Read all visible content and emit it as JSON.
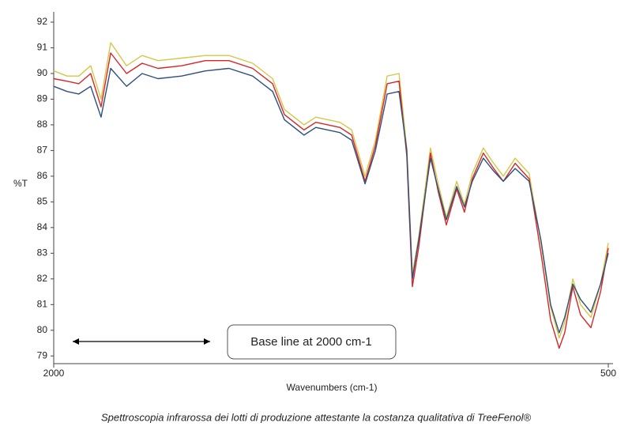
{
  "chart_data": {
    "type": "line",
    "ylabel": "%T",
    "xlabel": "Wavenumbers (cm-1)",
    "annotation": "Base line at 2000 cm-1",
    "caption": "Spettroscopia infrarossa dei lotti di produzione attestante la costanza qualitativa di TreeFenol®",
    "xlim": [
      2000,
      500
    ],
    "xticks": [
      2000,
      500
    ],
    "ylim": [
      78.7,
      92.4
    ],
    "yticks": [
      79,
      80,
      81,
      82,
      83,
      84,
      85,
      86,
      87,
      88,
      89,
      90,
      91,
      92
    ],
    "x": [
      2000,
      1964,
      1932,
      1900,
      1872,
      1846,
      1803,
      1761,
      1718,
      1654,
      1590,
      1526,
      1462,
      1408,
      1376,
      1323,
      1291,
      1226,
      1194,
      1158,
      1130,
      1098,
      1066,
      1045,
      1030,
      1013,
      981,
      960,
      938,
      910,
      889,
      868,
      838,
      810,
      784,
      752,
      714,
      682,
      656,
      633,
      618,
      596,
      575,
      547,
      521,
      500
    ],
    "series": [
      {
        "color": "#d4c84a",
        "values": [
          90.1,
          89.9,
          89.9,
          90.3,
          89.0,
          91.2,
          90.3,
          90.7,
          90.5,
          90.6,
          90.7,
          90.7,
          90.4,
          89.8,
          88.6,
          88.0,
          88.3,
          88.1,
          87.8,
          86.0,
          87.4,
          89.9,
          90.0,
          87.1,
          82.2,
          83.6,
          87.1,
          85.7,
          84.4,
          85.8,
          84.9,
          86.1,
          87.1,
          86.5,
          86.0,
          86.7,
          86.1,
          83.4,
          80.9,
          79.7,
          80.3,
          82.0,
          81.0,
          80.5,
          81.8,
          83.4
        ]
      },
      {
        "color": "#d62728",
        "values": [
          89.8,
          89.7,
          89.6,
          90.0,
          88.7,
          90.8,
          90.0,
          90.4,
          90.2,
          90.3,
          90.5,
          90.5,
          90.2,
          89.6,
          88.4,
          87.8,
          88.1,
          87.9,
          87.6,
          85.8,
          87.2,
          89.6,
          89.7,
          86.8,
          81.7,
          83.2,
          86.9,
          85.4,
          84.1,
          85.5,
          84.6,
          85.9,
          86.9,
          86.3,
          85.8,
          86.5,
          85.9,
          83.0,
          80.4,
          79.3,
          79.9,
          81.7,
          80.6,
          80.1,
          81.5,
          83.2
        ]
      },
      {
        "color": "#2f4f7f",
        "values": [
          89.5,
          89.3,
          89.2,
          89.5,
          88.3,
          90.2,
          89.5,
          90.0,
          89.8,
          89.9,
          90.1,
          90.2,
          89.9,
          89.3,
          88.2,
          87.6,
          87.9,
          87.7,
          87.4,
          85.7,
          87.0,
          89.2,
          89.3,
          87.0,
          82.0,
          83.5,
          86.7,
          85.5,
          84.3,
          85.6,
          84.8,
          85.8,
          86.7,
          86.2,
          85.8,
          86.3,
          85.8,
          83.5,
          81.0,
          79.9,
          80.5,
          81.8,
          81.2,
          80.7,
          81.8,
          83.0
        ]
      }
    ]
  }
}
